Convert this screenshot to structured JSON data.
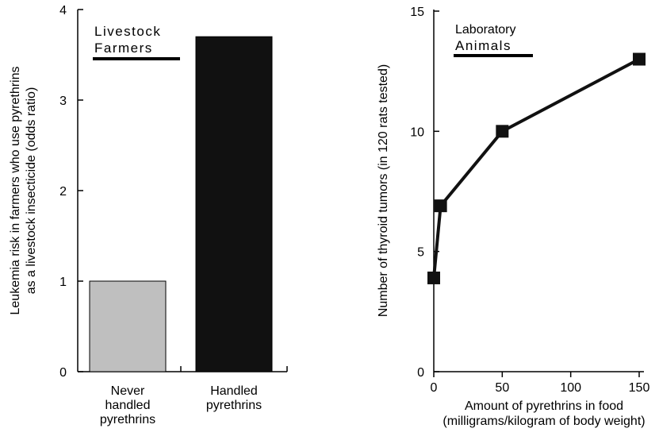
{
  "chart_data": [
    {
      "type": "bar",
      "title": "Livestock Farmers",
      "ylabel": "Leukemia risk in farmers who use pyrethrins as a livestock insecticide (odds ratio)",
      "xlabel": "",
      "ylim": [
        0,
        4
      ],
      "yticks": [
        0,
        1,
        2,
        3,
        4
      ],
      "categories": [
        "Never handled pyrethrins",
        "Handled pyrethrins"
      ],
      "category_lines": [
        [
          "Never",
          "handled",
          "pyrethrins"
        ],
        [
          "Handled",
          "pyrethrins"
        ]
      ],
      "values": [
        1.0,
        3.7
      ],
      "colors": [
        "#bfbfbf",
        "#111111"
      ],
      "grid": false
    },
    {
      "type": "line",
      "title": "Laboratory Animals",
      "ylabel": "Number of thyroid tumors (in 120 rats tested)",
      "xlabel_lines": [
        "Amount of pyrethrins in food",
        "(milligrams/kilogram of body weight)"
      ],
      "xlim": [
        0,
        150
      ],
      "ylim": [
        0,
        15
      ],
      "xticks": [
        0,
        50,
        100,
        150
      ],
      "yticks": [
        0,
        5,
        10,
        15
      ],
      "x": [
        0,
        5,
        50,
        150
      ],
      "y": [
        3.9,
        6.9,
        10.0,
        13.0
      ],
      "color": "#111111",
      "marker": "square",
      "grid": false
    }
  ]
}
